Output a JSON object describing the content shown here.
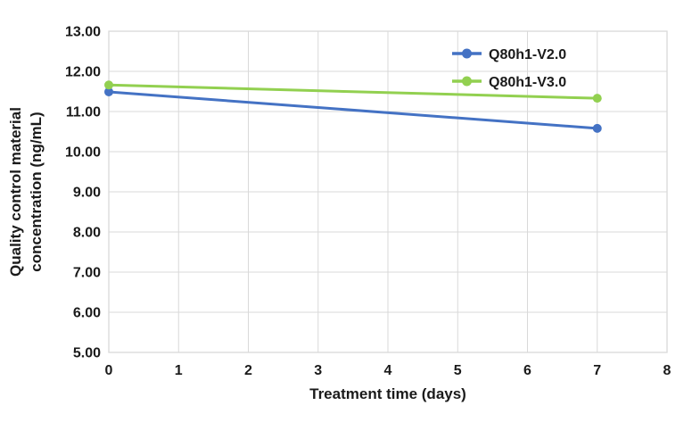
{
  "chart_data": {
    "type": "line",
    "title": "",
    "xlabel": "Treatment time (days)",
    "ylabel": "Quality control material concentration (ng/mL)",
    "ylabel_lines": [
      "Quality control material",
      "concentration (ng/mL)"
    ],
    "xlim": [
      0,
      8
    ],
    "ylim": [
      5,
      13
    ],
    "x_tick_values": [
      0,
      1,
      2,
      3,
      4,
      5,
      6,
      7,
      8
    ],
    "x_tick_labels": [
      "0",
      "1",
      "2",
      "3",
      "4",
      "5",
      "6",
      "7",
      "8"
    ],
    "y_tick_values": [
      5,
      6,
      7,
      8,
      9,
      10,
      11,
      12,
      13
    ],
    "y_tick_labels": [
      "5.00",
      "6.00",
      "7.00",
      "8.00",
      "9.00",
      "10.00",
      "11.00",
      "12.00",
      "13.00"
    ],
    "grid": "both",
    "legend_position": "top-right-inside",
    "series": [
      {
        "name": "Q80h1-V2.0",
        "color": "#4472C4",
        "x": [
          0,
          7
        ],
        "values": [
          11.49,
          10.58
        ]
      },
      {
        "name": "Q80h1-V3.0",
        "color": "#92D050",
        "x": [
          0,
          7
        ],
        "values": [
          11.66,
          11.33
        ]
      }
    ],
    "colors": {
      "gridline": "#D9D9D9",
      "text": "#1a1a1a",
      "background": "#FFFFFF"
    }
  }
}
